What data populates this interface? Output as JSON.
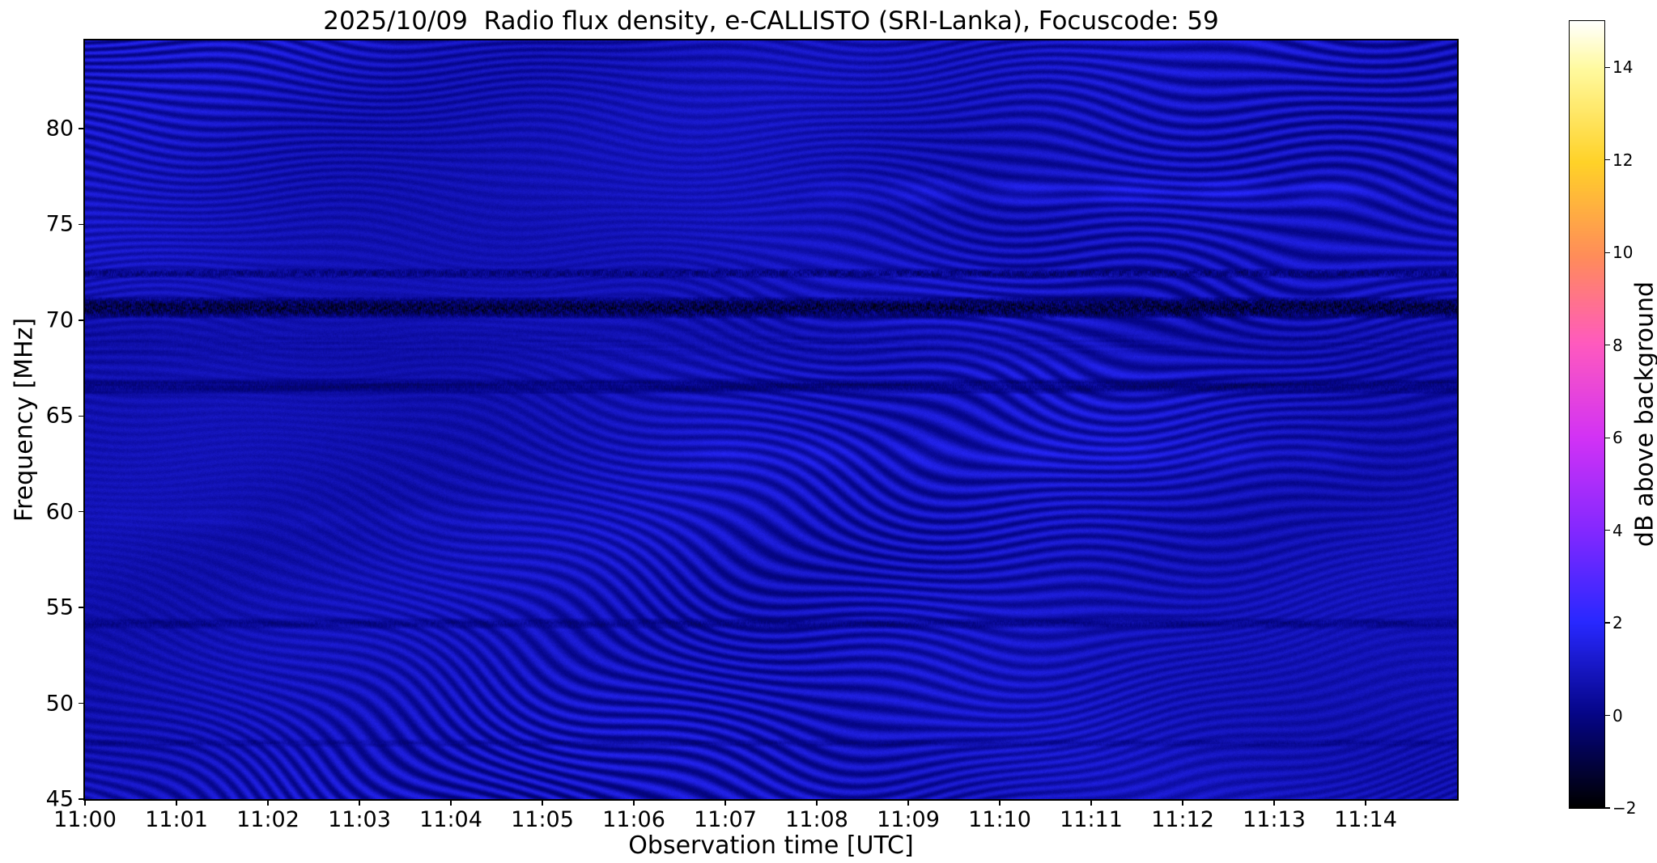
{
  "figure": {
    "kind": "matplotlib-style spectrogram figure",
    "background": "#ffffff"
  },
  "chart_data": {
    "type": "heatmap",
    "title": "2025/10/09  Radio flux density, e-CALLISTO (SRI-Lanka), Focuscode: 59",
    "xlabel": "Observation time [UTC]",
    "ylabel": "Frequency [MHz]",
    "x_ticks": [
      "11:00",
      "11:01",
      "11:02",
      "11:03",
      "11:04",
      "11:05",
      "11:06",
      "11:07",
      "11:08",
      "11:09",
      "11:10",
      "11:11",
      "11:12",
      "11:13",
      "11:14"
    ],
    "x_minutes_span": 15,
    "y_ticks": [
      45,
      50,
      55,
      60,
      65,
      70,
      75,
      80
    ],
    "y_range_mhz": [
      45,
      84.6
    ],
    "grid": false,
    "colorbar": {
      "label": "dB above background",
      "range": [
        -2,
        15
      ],
      "ticks": [
        -2,
        0,
        2,
        4,
        6,
        8,
        10,
        12,
        14
      ],
      "tick_labels": [
        "−2",
        "0",
        "2",
        "4",
        "6",
        "8",
        "10",
        "12",
        "14"
      ],
      "colormap": "gnuplot2-like (black-blue-violet-magenta-orange-yellow-white)",
      "stops": [
        {
          "t": 0.0,
          "rgb": [
            0,
            0,
            0
          ]
        },
        {
          "t": 0.118,
          "rgb": [
            5,
            5,
            135
          ]
        },
        {
          "t": 0.235,
          "rgb": [
            40,
            40,
            255
          ]
        },
        {
          "t": 0.35,
          "rgb": [
            130,
            40,
            255
          ]
        },
        {
          "t": 0.47,
          "rgb": [
            210,
            50,
            245
          ]
        },
        {
          "t": 0.59,
          "rgb": [
            255,
            90,
            190
          ]
        },
        {
          "t": 0.7,
          "rgb": [
            255,
            140,
            90
          ]
        },
        {
          "t": 0.82,
          "rgb": [
            255,
            210,
            40
          ]
        },
        {
          "t": 0.94,
          "rgb": [
            255,
            250,
            160
          ]
        },
        {
          "t": 1.0,
          "rgb": [
            255,
            255,
            255
          ]
        }
      ]
    },
    "content": {
      "description": "Quiet-Sun radio spectrogram: dark-blue background near 0-2 dB above background, covered by wavy ionospheric/interference fringe patterns (near-black troughs), horizontal RFI bands, and no solar burst features.",
      "background_db": 0.75,
      "fringe_amplitude_db": 0.55,
      "noise_db": 0.3,
      "rfi_bands": [
        {
          "name": "strong-speckled-band",
          "f_center": 70.65,
          "f_halfwidth": 0.6,
          "level_db": -1.2,
          "mix": 0.85,
          "speckle_db": 1.0,
          "dash_freq": 0.45
        },
        {
          "name": "speckled-line",
          "f_center": 72.45,
          "f_halfwidth": 0.28,
          "level_db": -0.5,
          "mix": 0.6,
          "speckle_db": 0.8,
          "dash_freq": 0.3
        },
        {
          "name": "dark-band",
          "f_center": 66.55,
          "f_halfwidth": 0.45,
          "level_db": -0.55,
          "mix": 0.65,
          "speckle_db": 0.45,
          "dash_freq": 0.012
        },
        {
          "name": "mottled-zone",
          "f_center": 68.8,
          "f_halfwidth": 1.3,
          "level_db": 0.25,
          "mix": 0.3,
          "speckle_db": 0.35,
          "dash_freq": 0.01
        },
        {
          "name": "dashed-line",
          "f_center": 54.15,
          "f_halfwidth": 0.3,
          "level_db": -0.55,
          "mix": 0.5,
          "speckle_db": 0.5,
          "dash_freq": 0.05
        },
        {
          "name": "faint-line",
          "f_center": 47.9,
          "f_halfwidth": 0.22,
          "level_db": -0.3,
          "mix": 0.4,
          "speckle_db": 0.4,
          "dash_freq": 0.07
        }
      ],
      "bright_patches": [
        {
          "f_center": 76.7,
          "f_halfwidth": 0.8,
          "t0": 0.52,
          "t1": 0.98,
          "boost_db": 0.5
        },
        {
          "f_center": 63.0,
          "f_halfwidth": 0.9,
          "t0": 0.42,
          "t1": 0.95,
          "boost_db": 0.25
        },
        {
          "f_center": 59.6,
          "f_halfwidth": 0.6,
          "t0": 0.0,
          "t1": 0.35,
          "boost_db": 0.2
        }
      ]
    }
  }
}
